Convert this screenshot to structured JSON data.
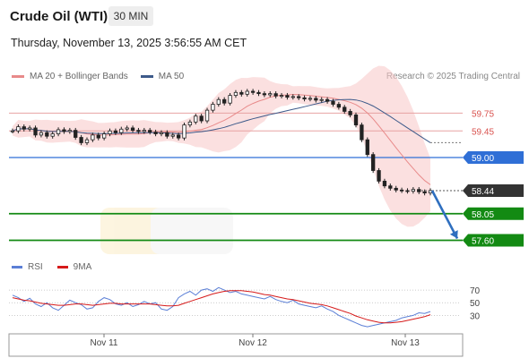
{
  "header": {
    "title": "Crude Oil (WTI)",
    "timeframe": "30 MIN"
  },
  "timestamp": "Thursday, November 13, 2025 3:56:55 AM CET",
  "legend": {
    "items": [
      {
        "label": "MA 20 + Bollinger Bands",
        "color": "#e88a8a"
      },
      {
        "label": "MA 50",
        "color": "#3d5a8a"
      }
    ],
    "credit": "Research © 2025 Trading Central"
  },
  "colors": {
    "resistance": "#d9534f",
    "pivot": "#2f6fd6",
    "support": "#138a13",
    "last": "#333333",
    "arrow": "#2f6fbf",
    "band": "#f7c6c6"
  },
  "chart_data": [
    {
      "type": "line",
      "title": "Crude Oil (WTI)",
      "timeframe": "30 MIN",
      "x_ticks": [
        "Nov 11",
        "Nov 12",
        "Nov 13"
      ],
      "price_range_approx": [
        57.35,
        60.15
      ],
      "series": [
        {
          "name": "Price",
          "values": [
            59.45,
            59.52,
            59.48,
            59.5,
            59.38,
            59.42,
            59.36,
            59.4,
            59.47,
            59.44,
            59.46,
            59.34,
            59.25,
            59.3,
            59.38,
            59.33,
            59.4,
            59.45,
            59.42,
            59.48,
            59.5,
            59.46,
            59.44,
            59.46,
            59.43,
            59.4,
            59.42,
            59.36,
            59.38,
            59.33,
            59.55,
            59.6,
            59.7,
            59.62,
            59.8,
            59.9,
            59.98,
            59.92,
            60.05,
            60.1,
            60.07,
            60.12,
            60.1,
            60.08,
            60.06,
            60.08,
            60.04,
            60.05,
            60.02,
            60.03,
            60.01,
            59.99,
            60.0,
            59.97,
            59.98,
            59.95,
            59.9,
            59.85,
            59.78,
            59.72,
            59.55,
            59.3,
            59.05,
            58.78,
            58.6,
            58.52,
            58.48,
            58.45,
            58.44,
            58.43,
            58.46,
            58.42,
            58.4,
            58.44
          ]
        },
        {
          "name": "MA 20"
        },
        {
          "name": "MA 50"
        }
      ],
      "levels": [
        {
          "value": 59.75,
          "label": "59.75",
          "kind": "resistance"
        },
        {
          "value": 59.45,
          "label": "59.45",
          "kind": "resistance"
        },
        {
          "value": 59.0,
          "label": "59.00",
          "kind": "pivot"
        },
        {
          "value": 58.44,
          "label": "58.44",
          "kind": "last"
        },
        {
          "value": 58.05,
          "label": "58.05",
          "kind": "support"
        },
        {
          "value": 57.6,
          "label": "57.60",
          "kind": "support"
        }
      ],
      "forecast_arrow": {
        "from": 58.44,
        "to": 57.6,
        "direction": "down"
      }
    },
    {
      "type": "line",
      "legend": [
        {
          "label": "RSI",
          "color": "#5b7fd6"
        },
        {
          "label": "9MA",
          "color": "#d61a1a"
        }
      ],
      "y_ticks": [
        70,
        50,
        30
      ],
      "ylim": [
        5,
        90
      ],
      "series": [
        {
          "name": "RSI",
          "values": [
            62,
            58,
            52,
            57,
            48,
            44,
            50,
            42,
            38,
            46,
            54,
            50,
            47,
            40,
            42,
            52,
            58,
            55,
            48,
            46,
            50,
            44,
            47,
            52,
            48,
            50,
            40,
            38,
            44,
            58,
            64,
            68,
            62,
            70,
            72,
            68,
            74,
            70,
            66,
            68,
            64,
            62,
            60,
            58,
            56,
            60,
            55,
            52,
            50,
            54,
            48,
            46,
            44,
            42,
            45,
            40,
            36,
            30,
            26,
            22,
            18,
            14,
            12,
            14,
            16,
            18,
            20,
            22,
            26,
            28,
            30,
            34,
            33,
            36
          ]
        },
        {
          "name": "9MA",
          "values": [
            58,
            56,
            54,
            53,
            51,
            49,
            48,
            47,
            46,
            46,
            47,
            48,
            48,
            47,
            46,
            47,
            48,
            49,
            49,
            48,
            48,
            48,
            48,
            48,
            48,
            47,
            46,
            45,
            45,
            46,
            49,
            52,
            55,
            58,
            61,
            64,
            66,
            68,
            69,
            69,
            69,
            68,
            67,
            65,
            63,
            62,
            60,
            58,
            56,
            55,
            53,
            51,
            49,
            48,
            47,
            45,
            42,
            39,
            36,
            33,
            29,
            26,
            23,
            21,
            19,
            18,
            18,
            19,
            20,
            22,
            24,
            26,
            28,
            31
          ]
        }
      ]
    }
  ]
}
